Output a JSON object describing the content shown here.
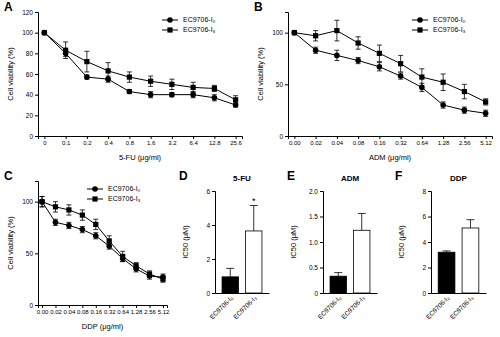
{
  "chart_data": [
    {
      "type": "line",
      "annotations": [
        "A"
      ],
      "x_label": "5-FU (μg/ml)",
      "y_label": "Cell viability (%)",
      "categories": [
        "0",
        "0.1",
        "0.2",
        "0.4",
        "0.8",
        "1.6",
        "3.2",
        "6.4",
        "12.8",
        "25.6"
      ],
      "ylim": [
        0,
        120
      ],
      "yticks": [
        0,
        20,
        40,
        60,
        80,
        100,
        120
      ],
      "legend": "upper right",
      "series": [
        {
          "name": "EC9706-I₀",
          "color": "#000000",
          "marker": "circle",
          "line_style": "solid",
          "values": [
            100,
            80,
            57,
            55,
            43,
            40,
            40,
            40,
            37,
            30
          ],
          "errors": [
            0,
            3,
            2,
            3,
            2,
            3,
            2,
            3,
            3,
            2
          ]
        },
        {
          "name": "EC9706-I₃",
          "color": "#000000",
          "marker": "square",
          "line_style": "solid",
          "values": [
            100,
            83,
            72,
            63,
            57,
            53,
            50,
            47,
            46,
            35
          ],
          "errors": [
            0,
            8,
            10,
            8,
            5,
            5,
            5,
            5,
            3,
            4
          ]
        }
      ]
    },
    {
      "type": "line",
      "annotations": [
        "B"
      ],
      "x_label": "ADM (μg/ml)",
      "y_label": "Cell viability (%)",
      "categories": [
        "0.00",
        "0.02",
        "0.04",
        "0.08",
        "0.16",
        "0.32",
        "0.64",
        "1.28",
        "2.56",
        "5.12"
      ],
      "ylim": [
        0,
        120
      ],
      "yticks": [
        0,
        50,
        100
      ],
      "legend": "upper right",
      "series": [
        {
          "name": "EC9706-I₀",
          "color": "#000000",
          "marker": "circle",
          "line_style": "solid",
          "values": [
            100,
            83,
            78,
            73,
            67,
            58,
            47,
            30,
            25,
            22
          ],
          "errors": [
            0,
            3,
            5,
            3,
            4,
            3,
            4,
            3,
            3,
            3
          ]
        },
        {
          "name": "EC9706-I₃",
          "color": "#000000",
          "marker": "square",
          "line_style": "solid",
          "values": [
            100,
            97,
            102,
            90,
            80,
            70,
            57,
            52,
            43,
            33
          ],
          "errors": [
            0,
            5,
            10,
            6,
            8,
            8,
            8,
            8,
            7,
            3
          ]
        }
      ]
    },
    {
      "type": "line",
      "annotations": [
        "C"
      ],
      "x_label": "DDP (μg/ml)",
      "y_label": "Cell viability (%)",
      "categories": [
        "0.00",
        "0.02",
        "0.04",
        "0.08",
        "0.16",
        "0.32",
        "0.64",
        "1.28",
        "2.56",
        "5.12"
      ],
      "ylim": [
        0,
        120
      ],
      "yticks": [
        0,
        50,
        100
      ],
      "legend": "upper right",
      "series": [
        {
          "name": "EC9706-I₀",
          "color": "#000000",
          "marker": "circle",
          "line_style": "solid",
          "values": [
            100,
            80,
            77,
            73,
            67,
            57,
            45,
            35,
            28,
            27
          ],
          "errors": [
            5,
            3,
            3,
            3,
            3,
            3,
            3,
            3,
            3,
            3
          ]
        },
        {
          "name": "EC9706-I₃",
          "color": "#000000",
          "marker": "square",
          "line_style": "solid",
          "values": [
            100,
            95,
            92,
            87,
            78,
            62,
            47,
            38,
            30,
            25
          ],
          "errors": [
            5,
            5,
            5,
            5,
            5,
            5,
            5,
            3,
            3,
            3
          ]
        }
      ]
    },
    {
      "type": "bar",
      "annotations": [
        "D"
      ],
      "title": "5-FU",
      "y_label": "IC50 (μM)",
      "categories": [
        "EC9706-I₀",
        "EC9706-I₃"
      ],
      "values": [
        0.95,
        3.65
      ],
      "errors": [
        0.5,
        1.5
      ],
      "significance": [
        null,
        "*"
      ],
      "colors": [
        "#000000",
        "#ffffff"
      ],
      "ylim": [
        0,
        6
      ],
      "yticks": [
        0,
        2,
        4,
        6
      ]
    },
    {
      "type": "bar",
      "annotations": [
        "E"
      ],
      "title": "ADM",
      "y_label": "IC50 (μM)",
      "categories": [
        "EC9706-I₀",
        "EC9706-I₃"
      ],
      "values": [
        0.33,
        1.23
      ],
      "errors": [
        0.07,
        0.33
      ],
      "colors": [
        "#000000",
        "#ffffff"
      ],
      "ylim": [
        0,
        2
      ],
      "yticks": [
        0,
        0.5,
        {
          "value": 1,
          "label": "1.0"
        },
        1.5,
        {
          "value": 2,
          "label": "2.0"
        }
      ]
    },
    {
      "type": "bar",
      "annotations": [
        "F"
      ],
      "title": "DDP",
      "y_label": "IC50 (μM)",
      "categories": [
        "EC9706-I₀",
        "EC9706-I₃"
      ],
      "values": [
        3.2,
        5.1
      ],
      "errors": [
        0.1,
        0.65
      ],
      "colors": [
        "#000000",
        "#ffffff"
      ],
      "ylim": [
        0,
        8
      ],
      "yticks": [
        0,
        2,
        4,
        6,
        8
      ]
    }
  ]
}
